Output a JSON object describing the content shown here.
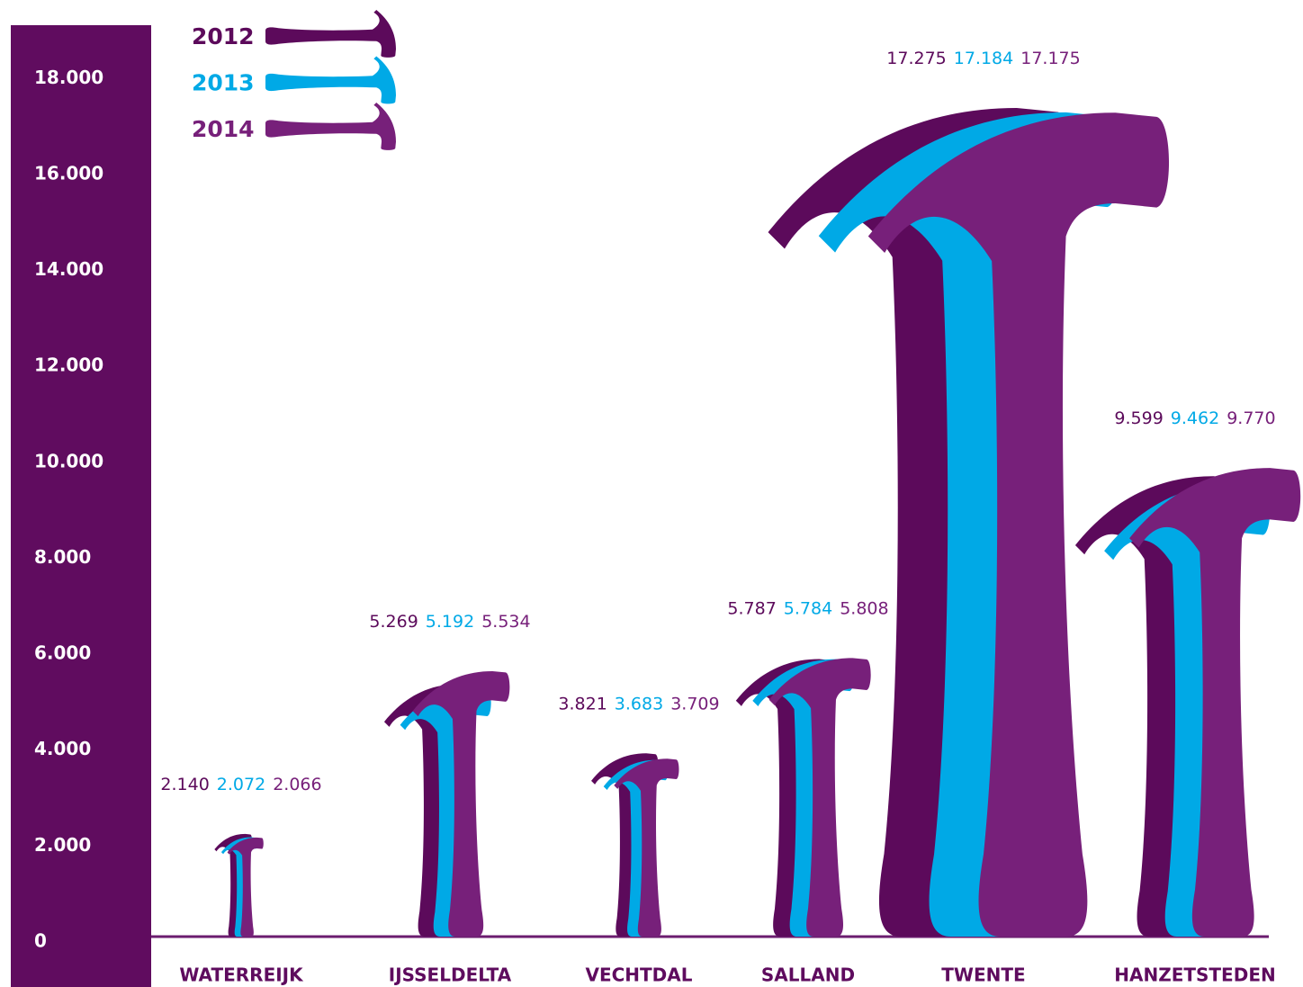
{
  "chart_data": {
    "type": "pictograph",
    "categories": [
      "WATERREIJK",
      "IJSSELDELTA",
      "VECHTDAL",
      "SALLAND",
      "TWENTE",
      "HANZETSTEDEN"
    ],
    "series": [
      {
        "name": "2012",
        "color": "#5c0a5b",
        "values": [
          2140,
          5269,
          3821,
          5787,
          17275,
          9599
        ],
        "value_labels": [
          "2.140",
          "5.269",
          "3.821",
          "5.787",
          "17.275",
          "9.599"
        ]
      },
      {
        "name": "2013",
        "color": "#00a9e6",
        "values": [
          2072,
          5192,
          3683,
          5784,
          17184,
          9462
        ],
        "value_labels": [
          "2.072",
          "5.192",
          "3.683",
          "5.784",
          "17.184",
          "9.462"
        ]
      },
      {
        "name": "2014",
        "color": "#77207a",
        "values": [
          2066,
          5534,
          3709,
          5808,
          17175,
          9770
        ],
        "value_labels": [
          "2.066",
          "5.534",
          "3.709",
          "5.808",
          "17.175",
          "9.770"
        ]
      }
    ],
    "ylim": [
      0,
      19000
    ],
    "yticks": [
      0,
      {
        "value": 2000,
        "label": "2.000"
      },
      {
        "value": 4000,
        "label": "4.000"
      },
      {
        "value": 6000,
        "label": "6.000"
      },
      {
        "value": 8000,
        "label": "8.000"
      },
      {
        "value": 10000,
        "label": "10.000"
      },
      {
        "value": 12000,
        "label": "12.000"
      },
      {
        "value": 14000,
        "label": "14.000"
      },
      {
        "value": 16000,
        "label": "16.000"
      },
      {
        "value": 18000,
        "label": "18.000"
      }
    ],
    "legend": "top-left"
  }
}
